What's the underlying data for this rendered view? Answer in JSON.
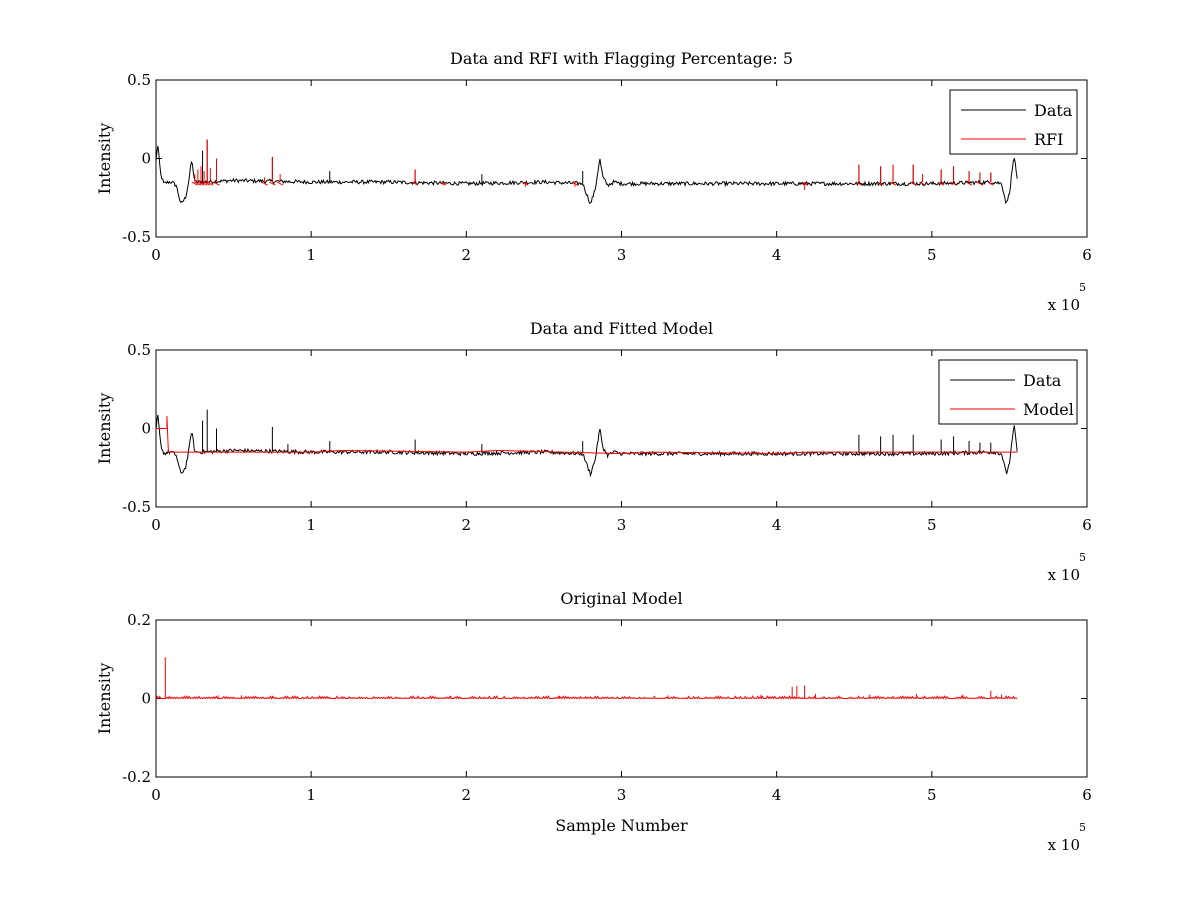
{
  "chart_data": [
    {
      "type": "line",
      "title": "Data and RFI with Flagging Percentage: 5",
      "xlabel": "",
      "ylabel": "Intensity",
      "xlim": [
        0,
        6
      ],
      "ylim": [
        -0.5,
        0.5
      ],
      "x_ticks": [
        "0",
        "1",
        "2",
        "3",
        "4",
        "5",
        "6"
      ],
      "y_ticks": [
        "0.5",
        "0",
        "-0.5"
      ],
      "x_multiplier": {
        "base": "x 10",
        "exponent": "5"
      },
      "legend": {
        "position": "top-right",
        "entries": [
          {
            "name": "Data",
            "color": "#000000"
          },
          {
            "name": "RFI",
            "color": "#ff0000"
          }
        ]
      },
      "series": [
        {
          "name": "Data",
          "color": "#000000",
          "kind": "noisy",
          "x": [
            0.0,
            0.01,
            0.03,
            0.05,
            0.08,
            0.1,
            0.13,
            0.16,
            0.19,
            0.21,
            0.23,
            0.25,
            0.3,
            0.5,
            1.0,
            1.5,
            2.0,
            2.5,
            2.75,
            2.8,
            2.83,
            2.86,
            2.88,
            2.91,
            2.95,
            3.0,
            3.5,
            4.0,
            4.5,
            5.0,
            5.4,
            5.45,
            5.48,
            5.5,
            5.53,
            5.55
          ],
          "y": [
            -0.02,
            0.1,
            -0.1,
            -0.16,
            -0.15,
            -0.15,
            -0.17,
            -0.29,
            -0.25,
            -0.15,
            -0.01,
            -0.15,
            -0.15,
            -0.14,
            -0.15,
            -0.15,
            -0.16,
            -0.15,
            -0.16,
            -0.29,
            -0.2,
            0.0,
            -0.12,
            -0.17,
            -0.15,
            -0.16,
            -0.16,
            -0.16,
            -0.16,
            -0.16,
            -0.15,
            -0.16,
            -0.29,
            -0.22,
            0.02,
            -0.14
          ],
          "noise": 0.012,
          "spikes": [
            {
              "x": 0.33,
              "y": 0.12
            },
            {
              "x": 0.3,
              "y": 0.05
            },
            {
              "x": 0.39,
              "y": 0.0
            },
            {
              "x": 0.75,
              "y": 0.01
            },
            {
              "x": 1.12,
              "y": -0.08
            },
            {
              "x": 1.67,
              "y": -0.07
            },
            {
              "x": 2.1,
              "y": -0.1
            },
            {
              "x": 2.75,
              "y": -0.08
            },
            {
              "x": 4.53,
              "y": -0.04
            },
            {
              "x": 4.67,
              "y": -0.05
            },
            {
              "x": 4.75,
              "y": -0.04
            },
            {
              "x": 4.88,
              "y": -0.04
            },
            {
              "x": 5.06,
              "y": -0.07
            },
            {
              "x": 5.14,
              "y": -0.05
            },
            {
              "x": 5.24,
              "y": -0.08
            },
            {
              "x": 5.31,
              "y": -0.09
            },
            {
              "x": 5.38,
              "y": -0.09
            }
          ]
        },
        {
          "name": "RFI",
          "color": "#ff0000",
          "kind": "spikes",
          "baseline": -0.15,
          "spikes": [
            {
              "x": 0.25,
              "y": -0.1
            },
            {
              "x": 0.27,
              "y": -0.07
            },
            {
              "x": 0.29,
              "y": -0.05
            },
            {
              "x": 0.31,
              "y": -0.08
            },
            {
              "x": 0.33,
              "y": 0.12
            },
            {
              "x": 0.35,
              "y": -0.06
            },
            {
              "x": 0.39,
              "y": 0.0
            },
            {
              "x": 0.7,
              "y": -0.12
            },
            {
              "x": 0.75,
              "y": 0.01
            },
            {
              "x": 0.8,
              "y": -0.1
            },
            {
              "x": 1.67,
              "y": -0.07
            },
            {
              "x": 1.85,
              "y": -0.17
            },
            {
              "x": 2.38,
              "y": -0.18
            },
            {
              "x": 2.7,
              "y": -0.18
            },
            {
              "x": 4.18,
              "y": -0.2
            },
            {
              "x": 4.53,
              "y": -0.04
            },
            {
              "x": 4.67,
              "y": -0.05
            },
            {
              "x": 4.75,
              "y": -0.04
            },
            {
              "x": 4.88,
              "y": -0.04
            },
            {
              "x": 4.94,
              "y": -0.1
            },
            {
              "x": 5.06,
              "y": -0.07
            },
            {
              "x": 5.14,
              "y": -0.05
            },
            {
              "x": 5.24,
              "y": -0.08
            },
            {
              "x": 5.31,
              "y": -0.09
            },
            {
              "x": 5.38,
              "y": -0.09
            }
          ]
        }
      ]
    },
    {
      "type": "line",
      "title": "Data and Fitted Model",
      "xlabel": "",
      "ylabel": "Intensity",
      "xlim": [
        0,
        6
      ],
      "ylim": [
        -0.5,
        0.5
      ],
      "x_ticks": [
        "0",
        "1",
        "2",
        "3",
        "4",
        "5",
        "6"
      ],
      "y_ticks": [
        "0.5",
        "0",
        "-0.5"
      ],
      "x_multiplier": {
        "base": "x 10",
        "exponent": "5"
      },
      "legend": {
        "position": "top-right",
        "entries": [
          {
            "name": "Data",
            "color": "#000000"
          },
          {
            "name": "Model",
            "color": "#ff0000"
          }
        ]
      },
      "series": [
        {
          "name": "Data",
          "color": "#000000",
          "kind": "noisy",
          "x": [
            0.0,
            0.01,
            0.03,
            0.05,
            0.08,
            0.1,
            0.13,
            0.16,
            0.19,
            0.21,
            0.23,
            0.25,
            0.3,
            0.5,
            1.0,
            1.5,
            2.0,
            2.5,
            2.75,
            2.8,
            2.83,
            2.86,
            2.88,
            2.91,
            2.95,
            3.0,
            3.5,
            4.0,
            4.5,
            5.0,
            5.4,
            5.45,
            5.48,
            5.5,
            5.53,
            5.55
          ],
          "y": [
            -0.02,
            0.1,
            -0.1,
            -0.16,
            -0.15,
            -0.15,
            -0.17,
            -0.29,
            -0.25,
            -0.15,
            -0.01,
            -0.15,
            -0.15,
            -0.14,
            -0.15,
            -0.15,
            -0.16,
            -0.15,
            -0.16,
            -0.29,
            -0.2,
            0.0,
            -0.12,
            -0.17,
            -0.15,
            -0.16,
            -0.16,
            -0.16,
            -0.16,
            -0.16,
            -0.15,
            -0.16,
            -0.29,
            -0.22,
            0.02,
            -0.14
          ],
          "noise": 0.012,
          "spikes": [
            {
              "x": 0.33,
              "y": 0.12
            },
            {
              "x": 0.3,
              "y": 0.05
            },
            {
              "x": 0.39,
              "y": 0.0
            },
            {
              "x": 0.75,
              "y": 0.01
            },
            {
              "x": 0.85,
              "y": -0.1
            },
            {
              "x": 1.12,
              "y": -0.08
            },
            {
              "x": 1.67,
              "y": -0.07
            },
            {
              "x": 2.1,
              "y": -0.1
            },
            {
              "x": 2.75,
              "y": -0.08
            },
            {
              "x": 4.53,
              "y": -0.04
            },
            {
              "x": 4.67,
              "y": -0.05
            },
            {
              "x": 4.75,
              "y": -0.04
            },
            {
              "x": 4.88,
              "y": -0.04
            },
            {
              "x": 5.06,
              "y": -0.07
            },
            {
              "x": 5.14,
              "y": -0.05
            },
            {
              "x": 5.24,
              "y": -0.08
            },
            {
              "x": 5.31,
              "y": -0.09
            },
            {
              "x": 5.38,
              "y": -0.09
            }
          ]
        },
        {
          "name": "Model",
          "color": "#ff0000",
          "kind": "line",
          "x": [
            0.0,
            0.07,
            0.07,
            0.08,
            0.1,
            1.0,
            1.2,
            2.0,
            2.2,
            3.0,
            3.2,
            4.0,
            4.2,
            5.0,
            5.55
          ],
          "y": [
            0.0,
            0.0,
            0.08,
            -0.15,
            -0.15,
            -0.15,
            -0.14,
            -0.15,
            -0.14,
            -0.16,
            -0.15,
            -0.16,
            -0.15,
            -0.15,
            -0.15
          ]
        }
      ]
    },
    {
      "type": "line",
      "title": "Original Model",
      "xlabel": "Sample Number",
      "ylabel": "Intensity",
      "xlim": [
        0,
        6
      ],
      "ylim": [
        -0.2,
        0.2
      ],
      "x_ticks": [
        "0",
        "1",
        "2",
        "3",
        "4",
        "5",
        "6"
      ],
      "y_ticks": [
        "0.2",
        "0",
        "-0.2"
      ],
      "x_multiplier": {
        "base": "x 10",
        "exponent": "5"
      },
      "legend": null,
      "series": [
        {
          "name": "",
          "color": "#ff0000",
          "kind": "spikes",
          "baseline": 0,
          "x_range": [
            0.0,
            5.55
          ],
          "spikes": [
            {
              "x": 0.06,
              "y": 0.105
            },
            {
              "x": 0.4,
              "y": 0.008
            },
            {
              "x": 0.55,
              "y": 0.008
            },
            {
              "x": 0.75,
              "y": 0.007
            },
            {
              "x": 1.2,
              "y": 0.006
            },
            {
              "x": 1.9,
              "y": 0.006
            },
            {
              "x": 2.6,
              "y": 0.007
            },
            {
              "x": 3.3,
              "y": 0.008
            },
            {
              "x": 3.9,
              "y": 0.01
            },
            {
              "x": 4.1,
              "y": 0.03
            },
            {
              "x": 4.13,
              "y": 0.032
            },
            {
              "x": 4.18,
              "y": 0.033
            },
            {
              "x": 4.25,
              "y": 0.012
            },
            {
              "x": 4.6,
              "y": 0.01
            },
            {
              "x": 4.9,
              "y": 0.012
            },
            {
              "x": 5.2,
              "y": 0.01
            },
            {
              "x": 5.38,
              "y": 0.02
            },
            {
              "x": 5.45,
              "y": 0.01
            }
          ]
        }
      ]
    }
  ]
}
